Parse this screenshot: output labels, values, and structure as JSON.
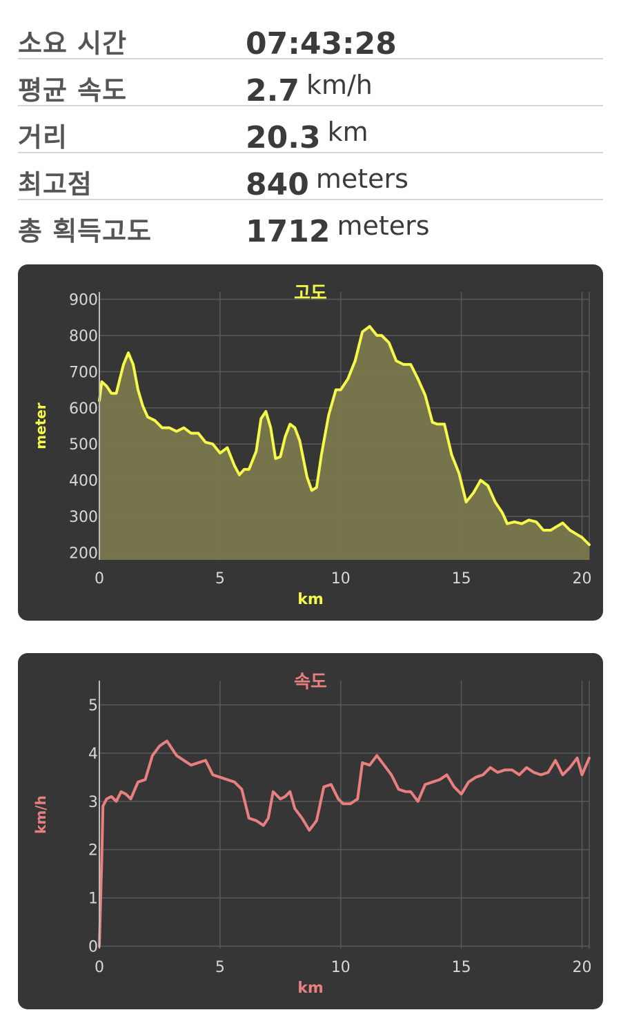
{
  "stats": [
    {
      "label": "소요 시간",
      "value": "07:43:28",
      "unit": ""
    },
    {
      "label": "평균 속도",
      "value": "2.7",
      "unit": "km/h"
    },
    {
      "label": "거리",
      "value": "20.3",
      "unit": "km"
    },
    {
      "label": "최고점",
      "value": "840",
      "unit": "meters"
    },
    {
      "label": "총 획득고도",
      "value": "1712",
      "unit": "meters"
    }
  ],
  "chart_data": [
    {
      "type": "area",
      "title": "고도",
      "xlabel": "km",
      "ylabel": "meter",
      "xlim": [
        0,
        20.3
      ],
      "ylim": [
        180,
        920
      ],
      "x_ticks": [
        0,
        5,
        10,
        15,
        20
      ],
      "y_ticks": [
        200,
        300,
        400,
        500,
        600,
        700,
        800,
        900
      ],
      "grid": true,
      "line_color": "#f6f94a",
      "fill_color": "#7a784c",
      "series": [
        {
          "x": [
            0,
            0.1,
            0.3,
            0.5,
            0.7,
            0.85,
            1.0,
            1.2,
            1.4,
            1.6,
            1.8,
            2.0,
            2.3,
            2.6,
            2.9,
            3.2,
            3.5,
            3.8,
            4.1,
            4.4,
            4.7,
            5.0,
            5.3,
            5.6,
            5.8,
            6.0,
            6.2,
            6.5,
            6.7,
            6.9,
            7.1,
            7.3,
            7.5,
            7.7,
            7.9,
            8.1,
            8.3,
            8.6,
            8.8,
            9.0,
            9.2,
            9.5,
            9.8,
            10.0,
            10.3,
            10.6,
            10.9,
            11.2,
            11.5,
            11.7,
            12.0,
            12.3,
            12.6,
            12.9,
            13.2,
            13.5,
            13.8,
            14.0,
            14.3,
            14.6,
            14.9,
            15.2,
            15.5,
            15.8,
            16.1,
            16.4,
            16.7,
            16.9,
            17.2,
            17.5,
            17.8,
            18.1,
            18.4,
            18.7,
            18.9,
            19.2,
            19.5,
            19.8,
            20.0,
            20.3
          ],
          "y": [
            620,
            672,
            660,
            640,
            640,
            680,
            720,
            752,
            720,
            650,
            605,
            575,
            565,
            545,
            545,
            535,
            545,
            530,
            530,
            505,
            500,
            475,
            490,
            440,
            415,
            430,
            430,
            480,
            570,
            590,
            545,
            460,
            465,
            520,
            555,
            545,
            510,
            410,
            372,
            380,
            470,
            580,
            650,
            650,
            680,
            730,
            810,
            825,
            800,
            800,
            780,
            730,
            720,
            720,
            680,
            635,
            560,
            555,
            555,
            470,
            420,
            340,
            365,
            400,
            385,
            340,
            310,
            280,
            285,
            280,
            290,
            285,
            262,
            262,
            270,
            282,
            262,
            250,
            242,
            222
          ]
        }
      ]
    },
    {
      "type": "line",
      "title": "속도",
      "xlabel": "km",
      "ylabel": "km/h",
      "xlim": [
        0,
        20.3
      ],
      "ylim": [
        -0.05,
        5.5
      ],
      "x_ticks": [
        0,
        5,
        10,
        15,
        20
      ],
      "y_ticks": [
        0,
        1,
        2,
        3,
        4,
        5
      ],
      "grid": true,
      "line_color": "#e97f7f",
      "series": [
        {
          "x": [
            0,
            0.1,
            0.15,
            0.3,
            0.5,
            0.7,
            0.9,
            1.1,
            1.3,
            1.6,
            1.9,
            2.2,
            2.5,
            2.8,
            3.0,
            3.2,
            3.5,
            3.8,
            4.1,
            4.4,
            4.7,
            5.0,
            5.3,
            5.6,
            5.9,
            6.2,
            6.5,
            6.8,
            7.0,
            7.2,
            7.5,
            7.7,
            7.9,
            8.1,
            8.4,
            8.7,
            9.0,
            9.3,
            9.6,
            9.9,
            10.1,
            10.4,
            10.7,
            10.9,
            11.2,
            11.5,
            11.8,
            12.1,
            12.4,
            12.7,
            12.9,
            13.2,
            13.5,
            13.8,
            14.1,
            14.4,
            14.7,
            15.0,
            15.3,
            15.6,
            15.9,
            16.2,
            16.5,
            16.8,
            17.1,
            17.4,
            17.7,
            18.0,
            18.3,
            18.6,
            18.9,
            19.2,
            19.5,
            19.8,
            20.0,
            20.3
          ],
          "y": [
            0,
            1.8,
            2.9,
            3.05,
            3.1,
            3.0,
            3.2,
            3.15,
            3.05,
            3.4,
            3.45,
            3.95,
            4.15,
            4.25,
            4.1,
            3.95,
            3.85,
            3.75,
            3.8,
            3.85,
            3.55,
            3.5,
            3.45,
            3.4,
            3.25,
            2.65,
            2.6,
            2.5,
            2.65,
            3.2,
            3.05,
            3.1,
            3.2,
            2.85,
            2.65,
            2.4,
            2.6,
            3.3,
            3.35,
            3.05,
            2.95,
            2.95,
            3.05,
            3.8,
            3.75,
            3.95,
            3.75,
            3.55,
            3.25,
            3.2,
            3.2,
            3.0,
            3.35,
            3.4,
            3.45,
            3.55,
            3.3,
            3.15,
            3.4,
            3.5,
            3.55,
            3.7,
            3.6,
            3.65,
            3.65,
            3.55,
            3.7,
            3.6,
            3.55,
            3.6,
            3.85,
            3.55,
            3.7,
            3.9,
            3.55,
            3.9
          ]
        }
      ]
    }
  ]
}
